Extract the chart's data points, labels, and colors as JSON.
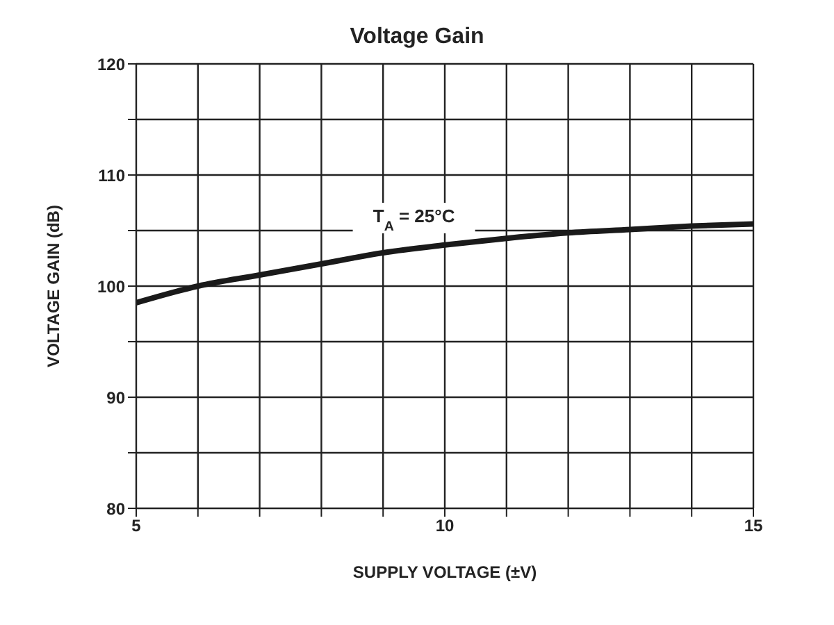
{
  "chart_data": {
    "type": "line",
    "title": "Voltage Gain",
    "xlabel": "SUPPLY VOLTAGE (±V)",
    "ylabel": "VOLTAGE GAIN (dB)",
    "x": [
      5,
      6,
      7,
      8,
      9,
      10,
      11,
      12,
      13,
      14,
      15
    ],
    "series": [
      {
        "color": "#1a1a1a",
        "values": [
          98.5,
          100,
          101,
          102,
          103,
          103.7,
          104.3,
          104.8,
          105.1,
          105.4,
          105.6
        ]
      }
    ],
    "xlim": [
      5,
      15
    ],
    "xticks": [
      5,
      {
        "value": 6,
        "label": null
      },
      {
        "value": 7,
        "label": null
      },
      {
        "value": 8,
        "label": null
      },
      {
        "value": 9,
        "label": null
      },
      10,
      {
        "value": 11,
        "label": null
      },
      {
        "value": 12,
        "label": null
      },
      {
        "value": 13,
        "label": null
      },
      {
        "value": 14,
        "label": null
      },
      15
    ],
    "ylim": [
      80,
      120
    ],
    "yticks": [
      80,
      {
        "value": 85,
        "label": null
      },
      90,
      {
        "value": 95,
        "label": null
      },
      100,
      {
        "value": 105,
        "label": null
      },
      110,
      {
        "value": 115,
        "label": null
      },
      120
    ],
    "grid": true,
    "marker": "none",
    "line_style": "solid",
    "legend": false,
    "annotations": [
      {
        "text": "T$_{A}$ = 25°C",
        "x": 9.5,
        "y": 104
      }
    ]
  }
}
